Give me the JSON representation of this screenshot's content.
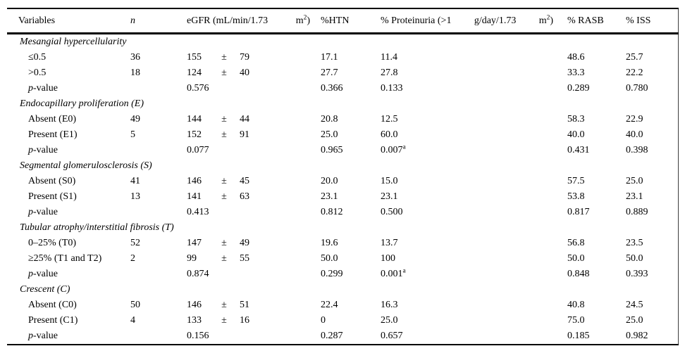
{
  "table": {
    "header": {
      "variables": "Variables",
      "n": "n",
      "egfr_seg1": "eGFR (mL/min/1.73",
      "unit_m": "m",
      "unit_sup": "2",
      "unit_close": ")",
      "htn": "%HTN",
      "prot_seg1": "% Proteinuria (>1",
      "prot_seg2": "g/day/1.73",
      "rasb": "% RASB",
      "iss": "% ISS"
    },
    "plus_minus_symbol": "±",
    "sections": [
      {
        "title": "Mesangial hypercellularity",
        "rows": [
          {
            "label": "≤0.5",
            "n": "36",
            "egfr": "155",
            "pm": "±",
            "sd": "79",
            "htn": "17.1",
            "prot": "11.4",
            "prot_sup": "",
            "rasb": "48.6",
            "iss": "25.7",
            "is_p": false
          },
          {
            "label": ">0.5",
            "n": "18",
            "egfr": "124",
            "pm": "±",
            "sd": "40",
            "htn": "27.7",
            "prot": "27.8",
            "prot_sup": "",
            "rasb": "33.3",
            "iss": "22.2",
            "is_p": false
          },
          {
            "label": "p-value",
            "label_italic": "p",
            "label_rest": "-value",
            "n": "",
            "egfr": "0.576",
            "pm": "",
            "sd": "",
            "htn": "0.366",
            "prot": "0.133",
            "prot_sup": "",
            "rasb": "0.289",
            "iss": "0.780",
            "is_p": true
          }
        ]
      },
      {
        "title": "Endocapillary proliferation (E)",
        "rows": [
          {
            "label": "Absent (E0)",
            "n": "49",
            "egfr": "144",
            "pm": "±",
            "sd": "44",
            "htn": "20.8",
            "prot": "12.5",
            "prot_sup": "",
            "rasb": "58.3",
            "iss": "22.9",
            "is_p": false
          },
          {
            "label": "Present (E1)",
            "n": "5",
            "egfr": "152",
            "pm": "±",
            "sd": "91",
            "htn": "25.0",
            "prot": "60.0",
            "prot_sup": "",
            "rasb": "40.0",
            "iss": "40.0",
            "is_p": false
          },
          {
            "label": "p-value",
            "label_italic": "p",
            "label_rest": "-value",
            "n": "",
            "egfr": "0.077",
            "pm": "",
            "sd": "",
            "htn": "0.965",
            "prot": "0.007",
            "prot_sup": "a",
            "rasb": "0.431",
            "iss": "0.398",
            "is_p": true
          }
        ]
      },
      {
        "title": "Segmental glomerulosclerosis (S)",
        "rows": [
          {
            "label": "Absent (S0)",
            "n": "41",
            "egfr": "146",
            "pm": "±",
            "sd": "45",
            "htn": "20.0",
            "prot": "15.0",
            "prot_sup": "",
            "rasb": "57.5",
            "iss": "25.0",
            "is_p": false
          },
          {
            "label": "Present (S1)",
            "n": "13",
            "egfr": "141",
            "pm": "±",
            "sd": "63",
            "htn": "23.1",
            "prot": "23.1",
            "prot_sup": "",
            "rasb": "53.8",
            "iss": "23.1",
            "is_p": false
          },
          {
            "label": "p-value",
            "label_italic": "p",
            "label_rest": "-value",
            "n": "",
            "egfr": "0.413",
            "pm": "",
            "sd": "",
            "htn": "0.812",
            "prot": "0.500",
            "prot_sup": "",
            "rasb": "0.817",
            "iss": "0.889",
            "is_p": true
          }
        ]
      },
      {
        "title": "Tubular atrophy/interstitial fibrosis (T)",
        "rows": [
          {
            "label": "0–25% (T0)",
            "n": "52",
            "egfr": "147",
            "pm": "±",
            "sd": "49",
            "htn": "19.6",
            "prot": "13.7",
            "prot_sup": "",
            "rasb": "56.8",
            "iss": "23.5",
            "is_p": false
          },
          {
            "label": "≥25% (T1 and T2)",
            "n": "2",
            "egfr": "99",
            "pm": "±",
            "sd": "55",
            "htn": "50.0",
            "prot": "100",
            "prot_sup": "",
            "rasb": "50.0",
            "iss": "50.0",
            "is_p": false
          },
          {
            "label": "p-value",
            "label_italic": "p",
            "label_rest": "-value",
            "n": "",
            "egfr": "0.874",
            "pm": "",
            "sd": "",
            "htn": "0.299",
            "prot": "0.001",
            "prot_sup": "a",
            "rasb": "0.848",
            "iss": "0.393",
            "is_p": true
          }
        ]
      },
      {
        "title": "Crescent (C)",
        "rows": [
          {
            "label": "Absent (C0)",
            "n": "50",
            "egfr": "146",
            "pm": "±",
            "sd": "51",
            "htn": "22.4",
            "prot": "16.3",
            "prot_sup": "",
            "rasb": "40.8",
            "iss": "24.5",
            "is_p": false
          },
          {
            "label": "Present (C1)",
            "n": "4",
            "egfr": "133",
            "pm": "±",
            "sd": "16",
            "htn": "0",
            "prot": "25.0",
            "prot_sup": "",
            "rasb": "75.0",
            "iss": "25.0",
            "is_p": false
          },
          {
            "label": "p-value",
            "label_italic": "p",
            "label_rest": "-value",
            "n": "",
            "egfr": "0.156",
            "pm": "",
            "sd": "",
            "htn": "0.287",
            "prot": "0.657",
            "prot_sup": "",
            "rasb": "0.185",
            "iss": "0.982",
            "is_p": true
          }
        ]
      }
    ]
  }
}
